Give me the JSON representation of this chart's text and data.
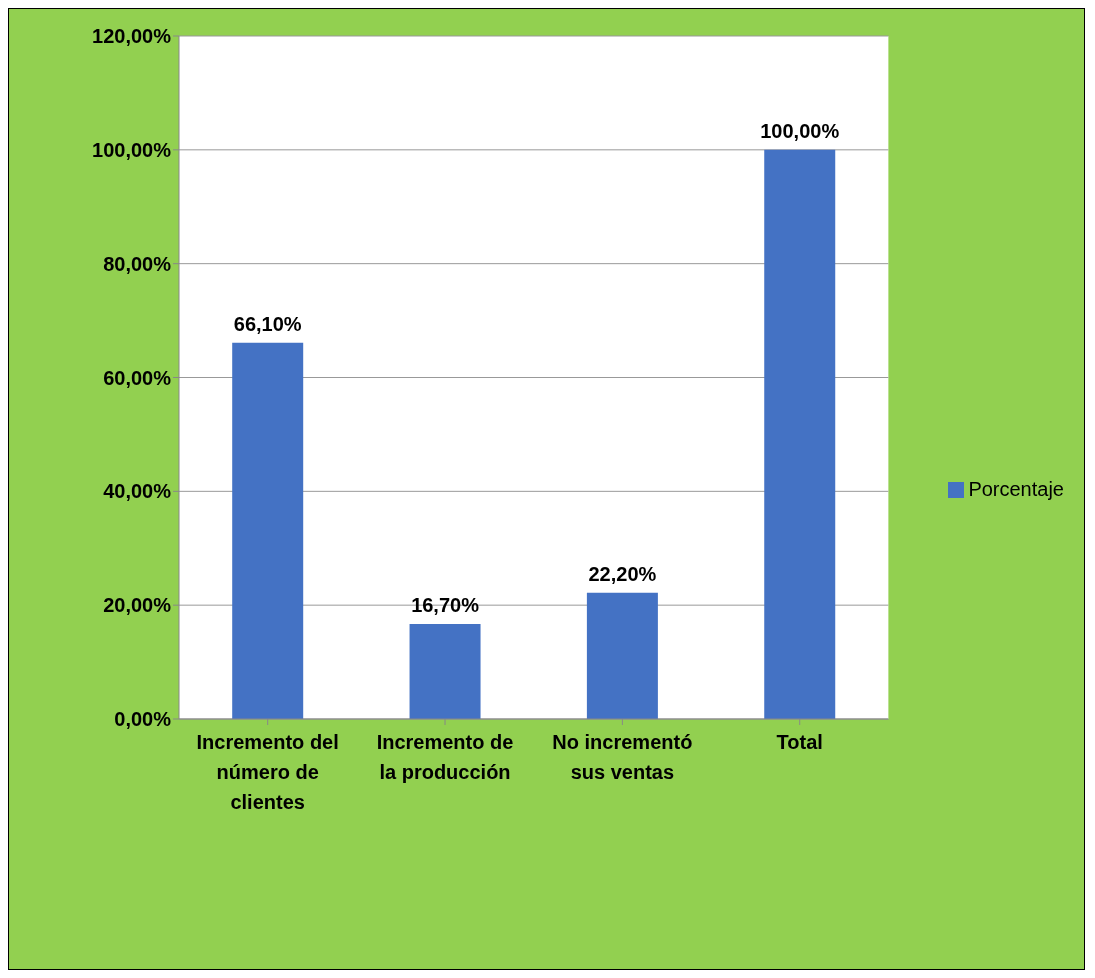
{
  "chart_data": {
    "type": "bar",
    "categories": [
      "Incremento del número de clientes",
      "Incremento de la producción",
      "No incrementó sus ventas",
      "Total"
    ],
    "series": [
      {
        "name": "Porcentaje",
        "color": "#4472c4",
        "values": [
          66.1,
          16.7,
          22.2,
          100
        ],
        "value_labels": [
          "66,10%",
          "16,70%",
          "22,20%",
          "100,00%"
        ]
      }
    ],
    "ylim": [
      0,
      120
    ],
    "yticks": [
      {
        "value": 0,
        "label": "0,00%"
      },
      {
        "value": 20,
        "label": "20,00%"
      },
      {
        "value": 40,
        "label": "40,00%"
      },
      {
        "value": 60,
        "label": "60,00%"
      },
      {
        "value": 80,
        "label": "80,00%"
      },
      {
        "value": 100,
        "label": "100,00%"
      },
      {
        "value": 120,
        "label": "120,00%"
      }
    ],
    "grid": "y",
    "legend": "right"
  }
}
